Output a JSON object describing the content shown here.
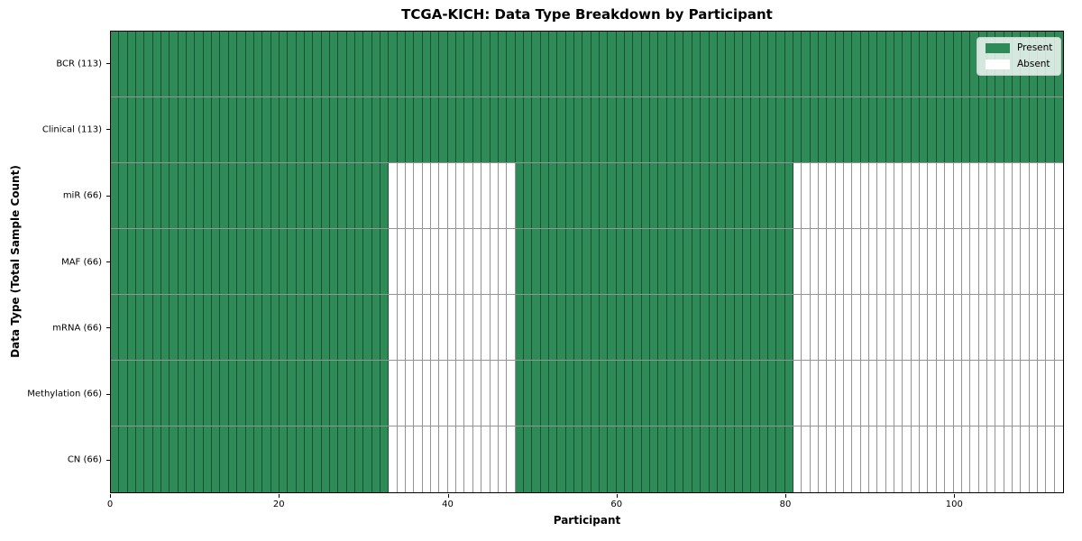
{
  "chart_data": {
    "type": "heatmap",
    "title": "TCGA-KICH: Data Type Breakdown by Participant",
    "xlabel": "Participant",
    "ylabel": "Data Type (Total Sample Count)",
    "n_participants": 113,
    "xlim": [
      0,
      113
    ],
    "x_ticks": [
      0,
      20,
      40,
      60,
      80,
      100
    ],
    "grid": true,
    "legend_position": "upper right",
    "legend": [
      {
        "label": "Present",
        "color": "#2e8b57"
      },
      {
        "label": "Absent",
        "color": "#ffffff"
      }
    ],
    "colors": {
      "present": "#2e8b57",
      "absent": "#ffffff",
      "cell_edge": "#00000066",
      "spine": "#000000"
    },
    "rows": [
      {
        "label": "BCR (113)",
        "total": 113,
        "present_ranges": [
          [
            0,
            113
          ]
        ]
      },
      {
        "label": "Clinical (113)",
        "total": 113,
        "present_ranges": [
          [
            0,
            113
          ]
        ]
      },
      {
        "label": "miR (66)",
        "total": 66,
        "present_ranges": [
          [
            0,
            33
          ],
          [
            48,
            81
          ]
        ]
      },
      {
        "label": "MAF (66)",
        "total": 66,
        "present_ranges": [
          [
            0,
            33
          ],
          [
            48,
            81
          ]
        ]
      },
      {
        "label": "mRNA (66)",
        "total": 66,
        "present_ranges": [
          [
            0,
            33
          ],
          [
            48,
            81
          ]
        ]
      },
      {
        "label": "Methylation (66)",
        "total": 66,
        "present_ranges": [
          [
            0,
            33
          ],
          [
            48,
            81
          ]
        ]
      },
      {
        "label": "CN (66)",
        "total": 66,
        "present_ranges": [
          [
            0,
            33
          ],
          [
            48,
            81
          ]
        ]
      }
    ]
  }
}
